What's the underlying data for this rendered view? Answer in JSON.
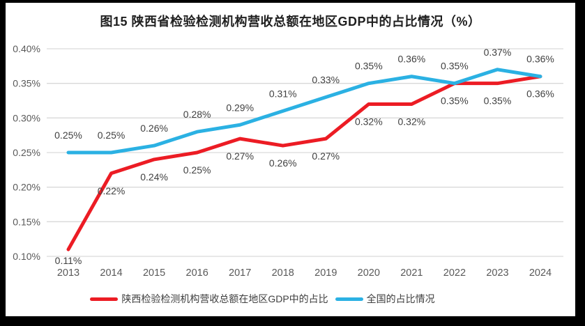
{
  "title": "图15 陕西省检验检测机构营收总额在地区GDP中的占比情况（%）",
  "colors": {
    "frame_background": "#000000",
    "chart_background": "#FFFFFF",
    "gridline": "#D9D9D9",
    "axis_text": "#595959",
    "data_label_text": "#404040",
    "title_text": "#1F1F1F"
  },
  "chart_data": {
    "type": "line",
    "categories": [
      "2013",
      "2014",
      "2015",
      "2016",
      "2017",
      "2018",
      "2019",
      "2020",
      "2021",
      "2022",
      "2023",
      "2024"
    ],
    "series": [
      {
        "name": "陕西检验检测机构营收总额在地区GDP中的占比",
        "color": "#EC1C24",
        "values": [
          0.11,
          0.22,
          0.24,
          0.25,
          0.27,
          0.26,
          0.27,
          0.32,
          0.32,
          0.35,
          0.35,
          0.36
        ],
        "labels": [
          "0.11%",
          "0.22%",
          "0.24%",
          "0.25%",
          "0.27%",
          "0.26%",
          "0.27%",
          "0.32%",
          "0.32%",
          "0.35%",
          "0.35%",
          "0.36%"
        ],
        "label_position": "below"
      },
      {
        "name": "全国的占比情况",
        "color": "#2BB1E3",
        "values": [
          0.25,
          0.25,
          0.26,
          0.28,
          0.29,
          0.31,
          0.33,
          0.35,
          0.36,
          0.35,
          0.37,
          0.36
        ],
        "labels": [
          "0.25%",
          "0.25%",
          "0.26%",
          "0.28%",
          "0.29%",
          "0.31%",
          "0.33%",
          "0.35%",
          "0.36%",
          "0.35%",
          "0.37%",
          "0.36%"
        ],
        "label_position": "above"
      }
    ],
    "xlabel": "",
    "ylabel": "",
    "ylim": [
      0.1,
      0.4
    ],
    "ytick_step": 0.05,
    "yticks": [
      "0.10%",
      "0.15%",
      "0.20%",
      "0.25%",
      "0.30%",
      "0.35%",
      "0.40%"
    ],
    "grid": true,
    "legend_position": "bottom",
    "value_label_format": "0.00%"
  }
}
